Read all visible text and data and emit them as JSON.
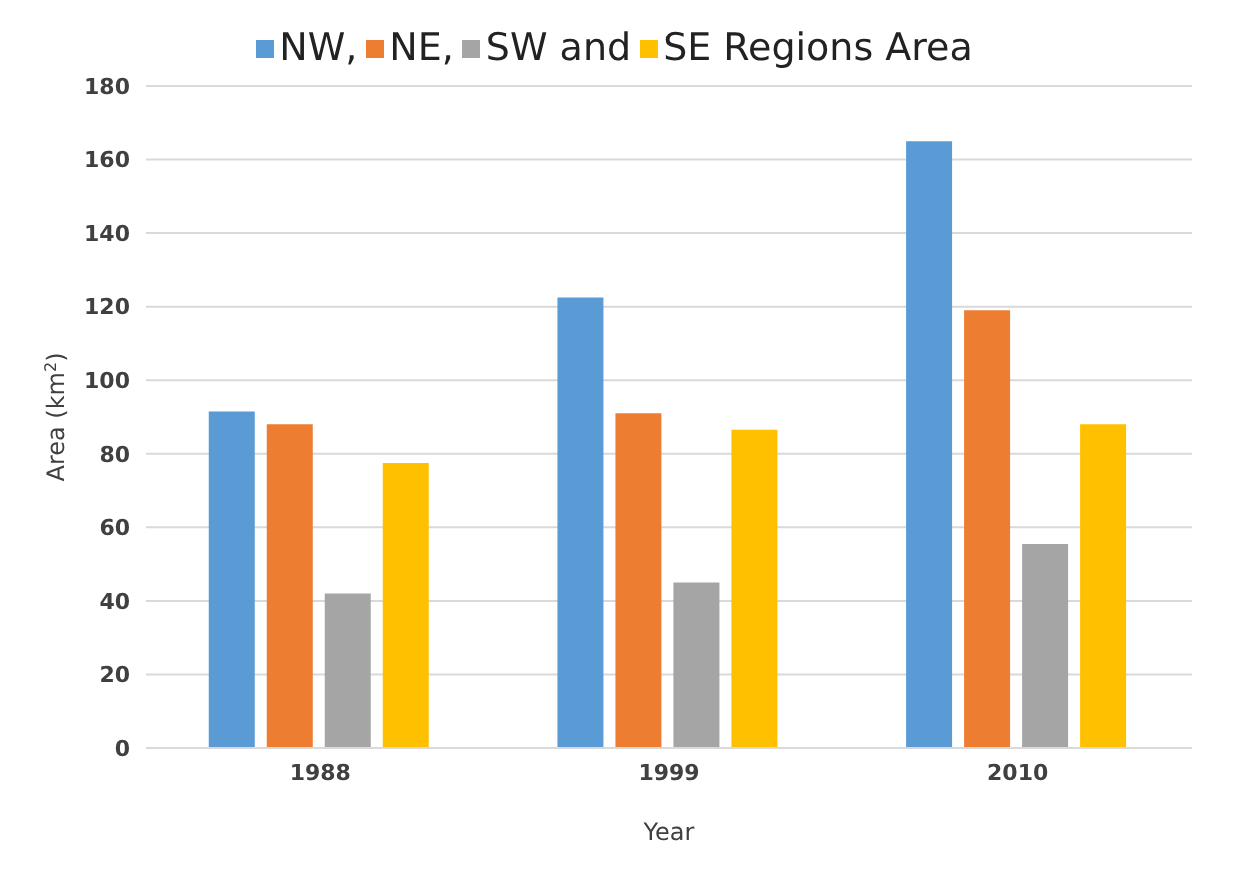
{
  "chart_data": {
    "type": "bar",
    "xlabel": "Year",
    "ylabel": "Area (km$^{2}$)",
    "categories": [
      "1988",
      "1999",
      "2010"
    ],
    "series": [
      {
        "name": "NW,",
        "color": "#5b9bd5",
        "values": [
          91.5,
          122.5,
          165
        ]
      },
      {
        "name": "NE,",
        "color": "#ed7d31",
        "values": [
          88,
          91,
          119
        ]
      },
      {
        "name": "SW and",
        "color": "#a5a5a5",
        "values": [
          42,
          45,
          55.5
        ]
      },
      {
        "name": "SE Regions Area",
        "color": "#ffc000",
        "values": [
          77.5,
          86.5,
          88
        ]
      }
    ],
    "ylim": [
      0,
      180
    ],
    "yticks": [
      0,
      20,
      40,
      60,
      80,
      100,
      120,
      140,
      160,
      180
    ],
    "grid": "y",
    "legend": "top"
  }
}
